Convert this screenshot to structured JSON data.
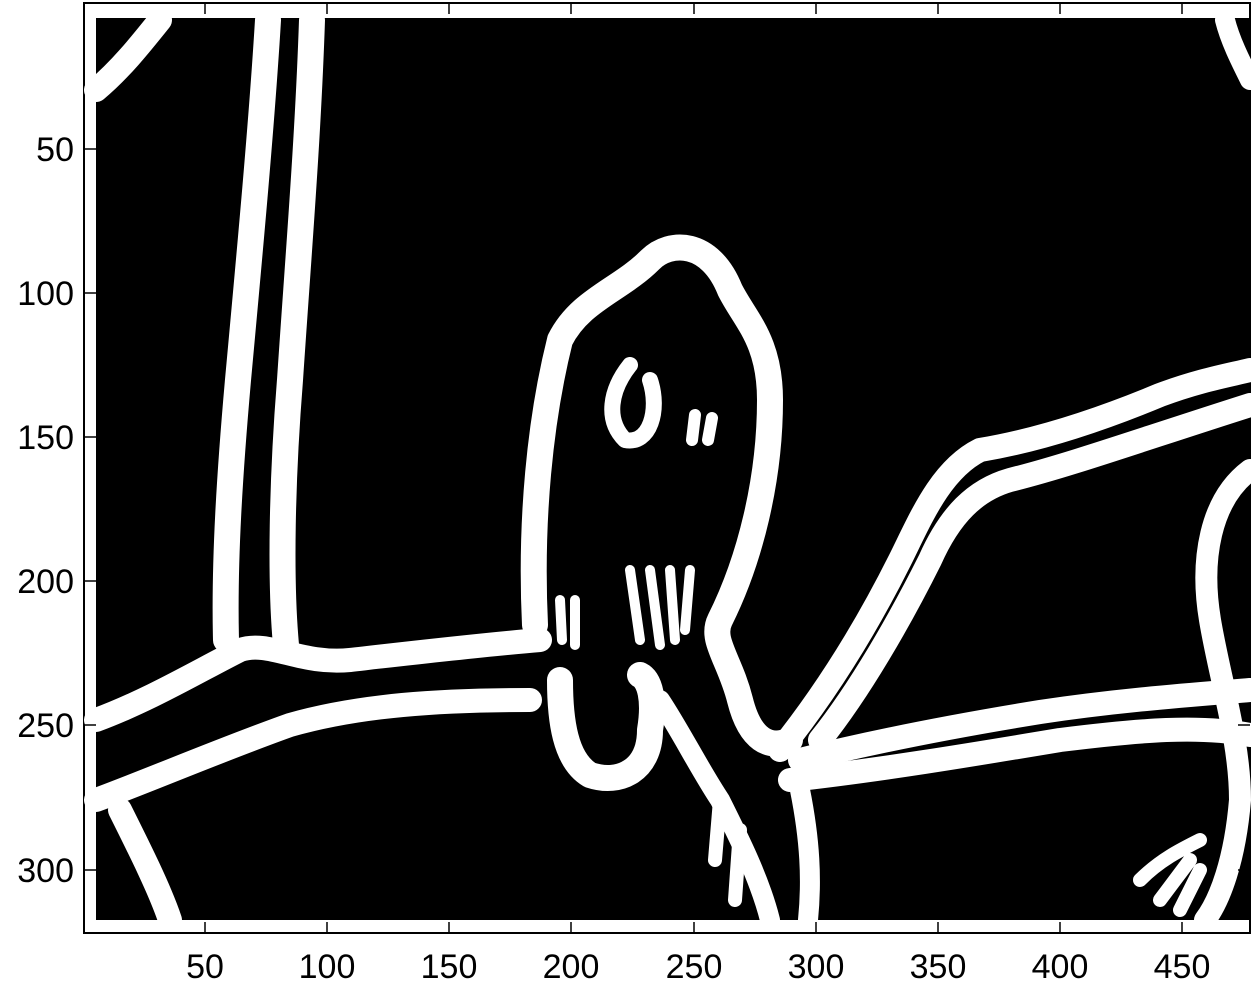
{
  "figure": {
    "image_description_colors": {
      "background": "#000000",
      "edges": "#ffffff",
      "axes": "#000000"
    },
    "x_axis": {
      "ticks": [
        "50",
        "100",
        "150",
        "200",
        "250",
        "300",
        "350",
        "400",
        "450"
      ],
      "range": [
        0,
        480
      ]
    },
    "y_axis": {
      "ticks": [
        "50",
        "100",
        "150",
        "200",
        "250",
        "300"
      ],
      "range": [
        0,
        320
      ]
    }
  }
}
